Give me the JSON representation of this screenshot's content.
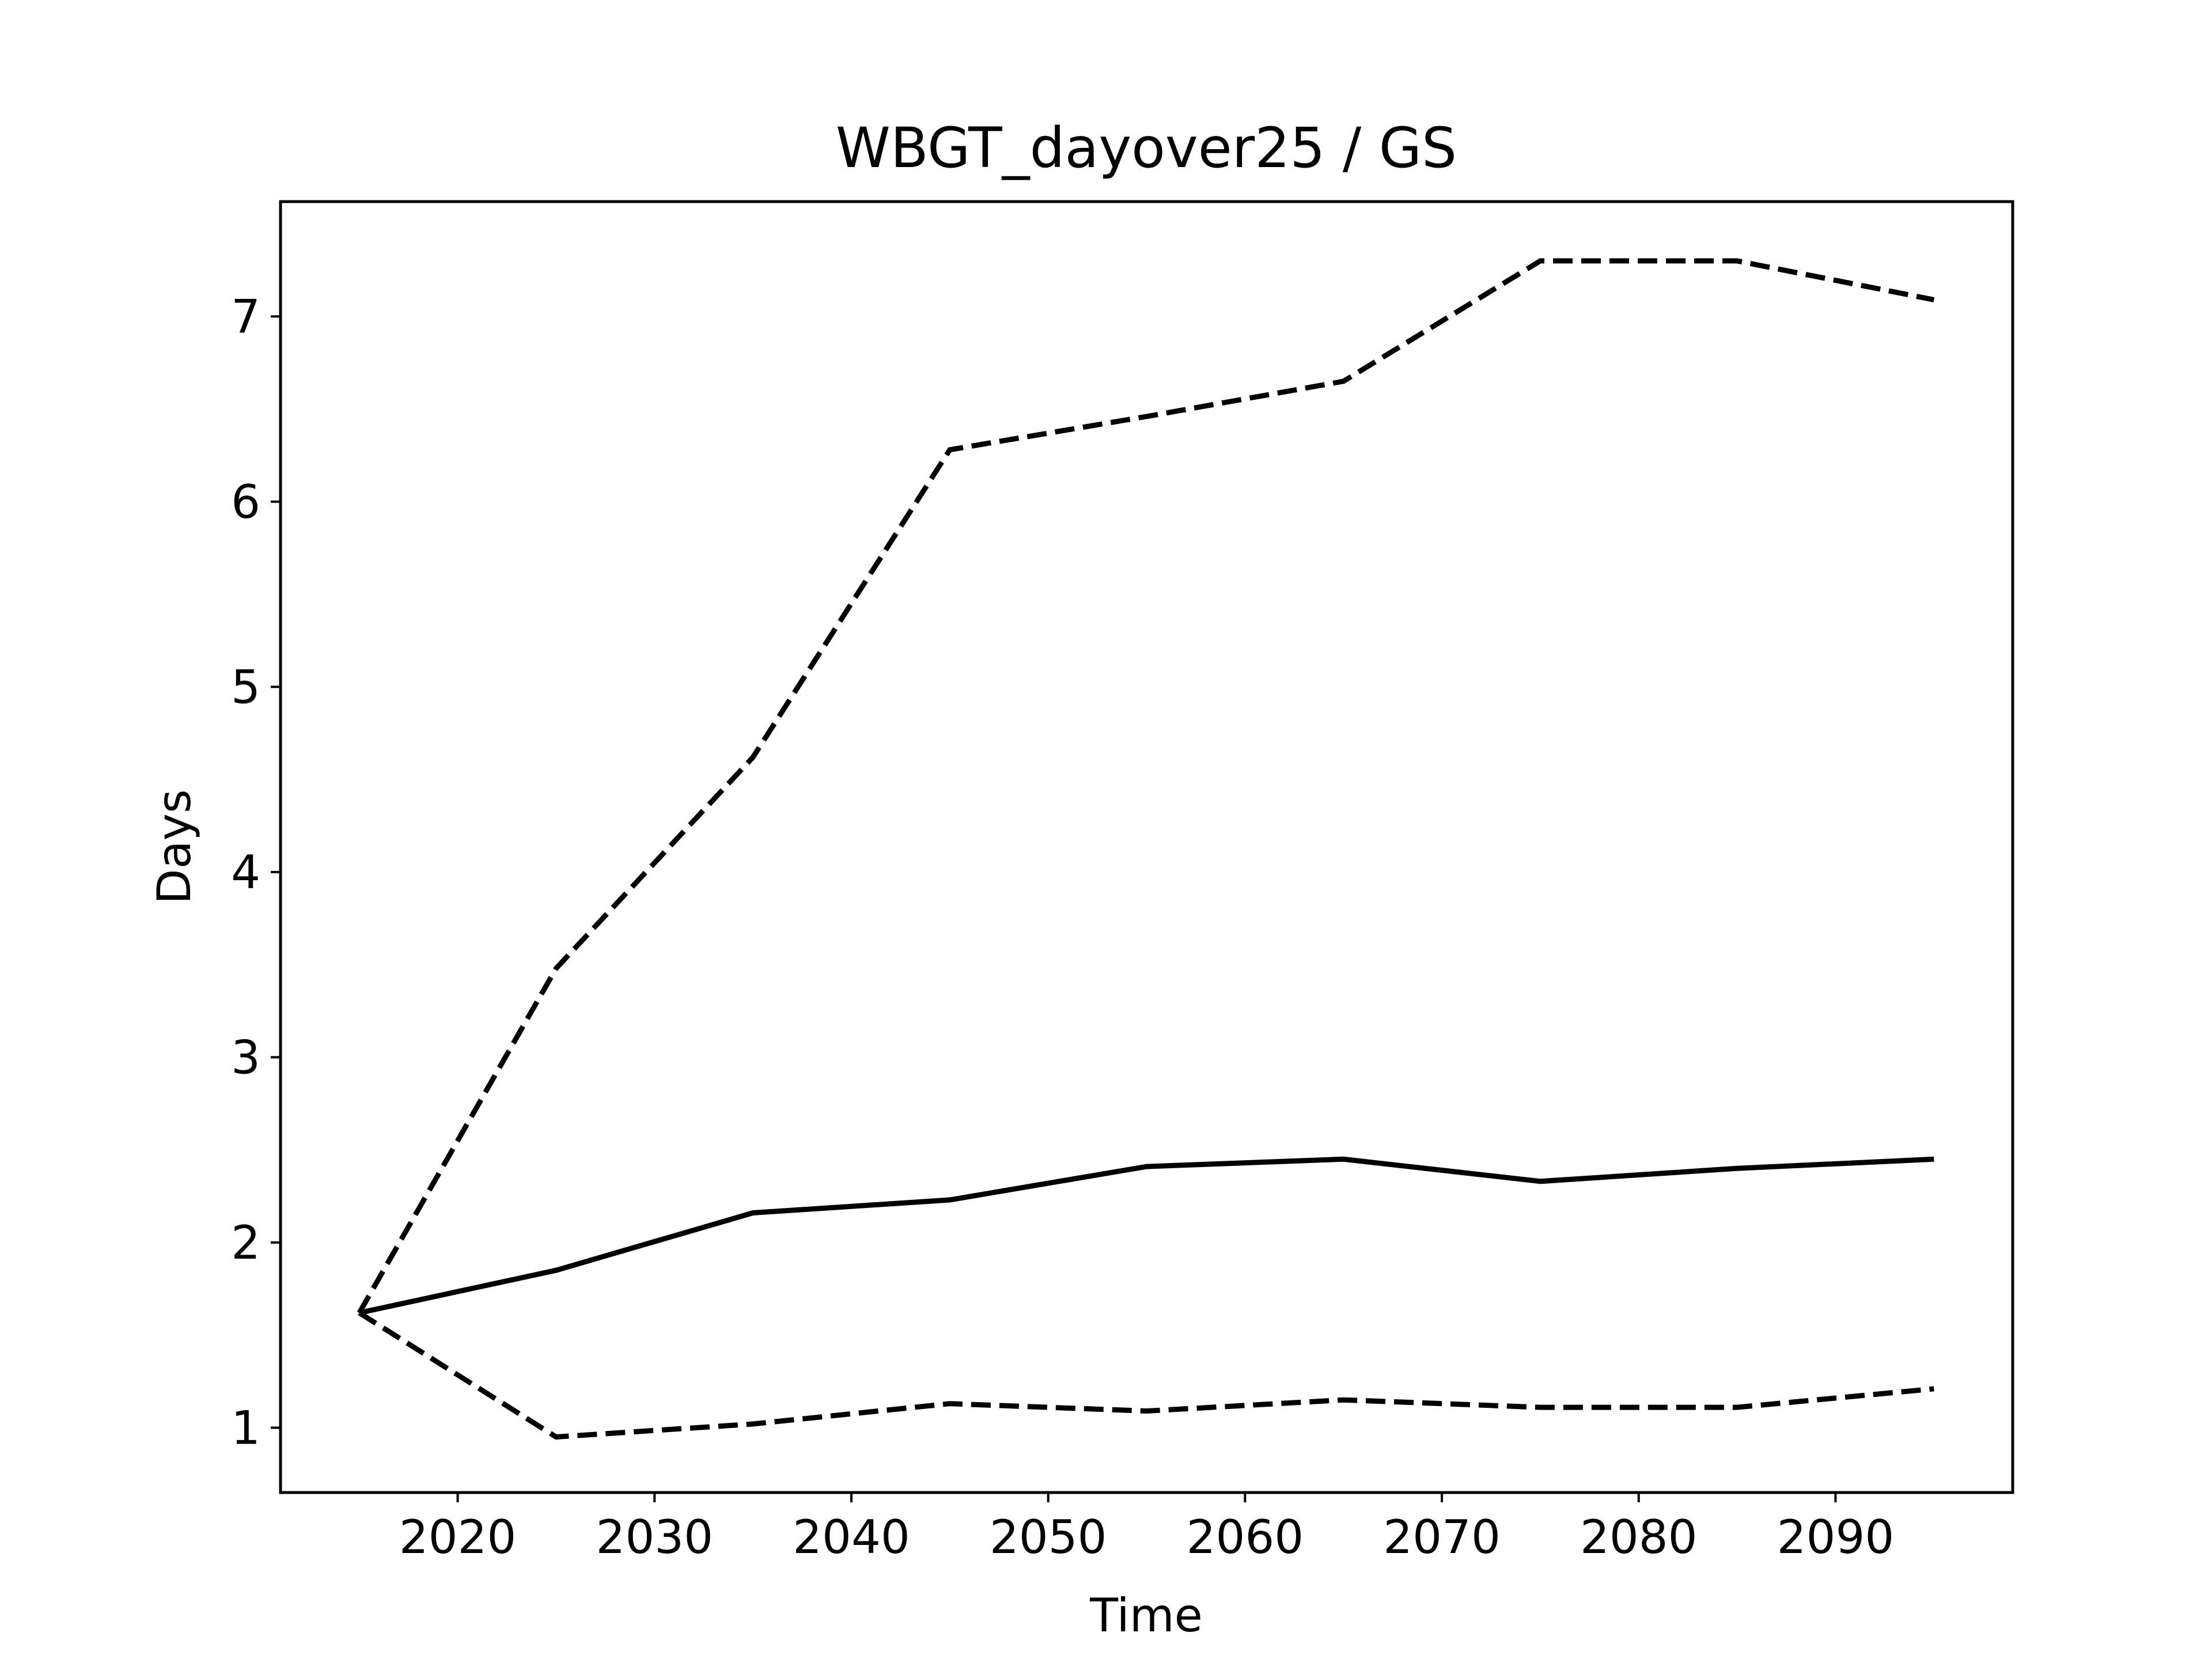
{
  "chart_data": {
    "type": "line",
    "title": "WBGT_dayover25 / GS",
    "xlabel": "Time",
    "ylabel": "Days",
    "xlim": [
      2011,
      2099
    ],
    "ylim": [
      0.65,
      7.62
    ],
    "x_ticks": [
      2020,
      2030,
      2040,
      2050,
      2060,
      2070,
      2080,
      2090
    ],
    "y_ticks": [
      1,
      2,
      3,
      4,
      5,
      6,
      7
    ],
    "grid": false,
    "legend": "none",
    "colors": {
      "line": "#000000",
      "axes": "#000000",
      "background": "#ffffff"
    },
    "x": [
      2015,
      2025,
      2035,
      2045,
      2055,
      2065,
      2075,
      2085,
      2095
    ],
    "series": [
      {
        "style": "solid",
        "values": [
          1.62,
          1.85,
          2.16,
          2.23,
          2.41,
          2.45,
          2.33,
          2.4,
          2.45
        ]
      },
      {
        "style": "dashed",
        "values": [
          1.62,
          3.48,
          4.62,
          6.28,
          6.46,
          6.65,
          7.3,
          7.3,
          7.09
        ]
      },
      {
        "style": "dashed",
        "values": [
          1.62,
          0.95,
          1.02,
          1.13,
          1.09,
          1.15,
          1.11,
          1.11,
          1.21
        ]
      }
    ]
  }
}
